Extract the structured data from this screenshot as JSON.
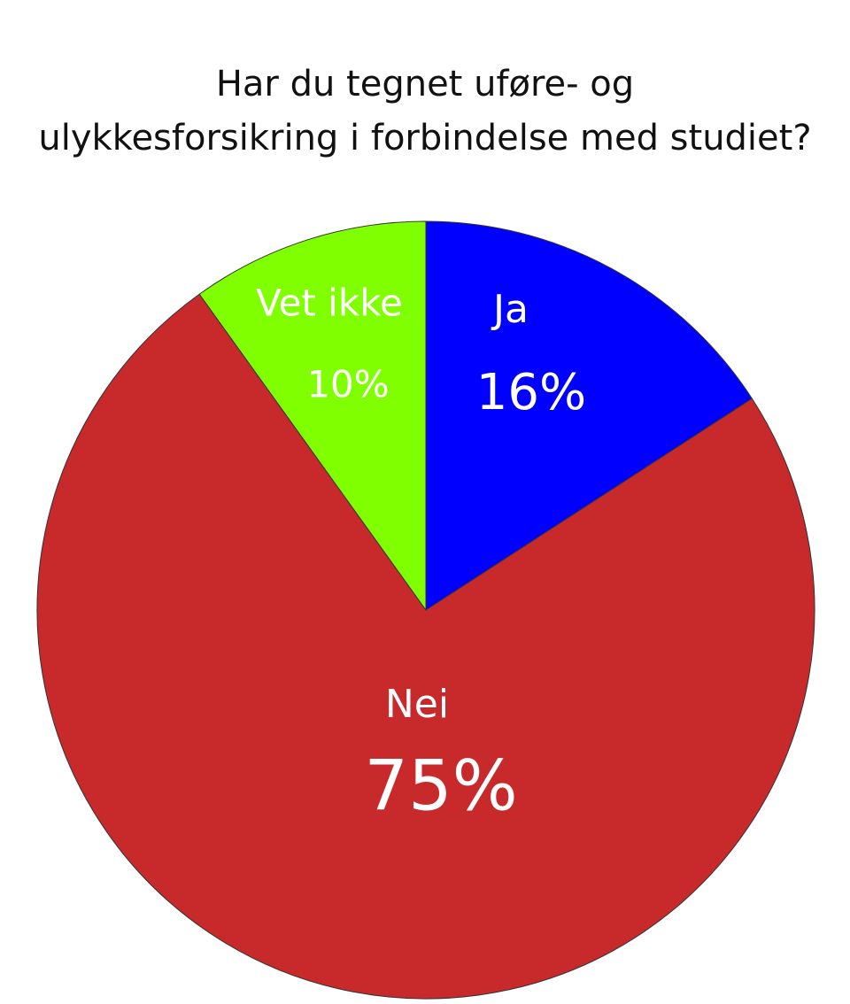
{
  "chart_data": {
    "type": "pie",
    "title": [
      "Har du tegnet uføre- og",
      "ulykkesforsikring i forbindelse med studiet?"
    ],
    "categories": [
      "Ja",
      "Nei",
      "Vet ikke"
    ],
    "values": [
      16,
      75,
      10
    ],
    "value_labels": [
      "16%",
      "75%",
      "10%"
    ],
    "colors": [
      "#0000ff",
      "#c8292b",
      "#7fff00"
    ]
  }
}
